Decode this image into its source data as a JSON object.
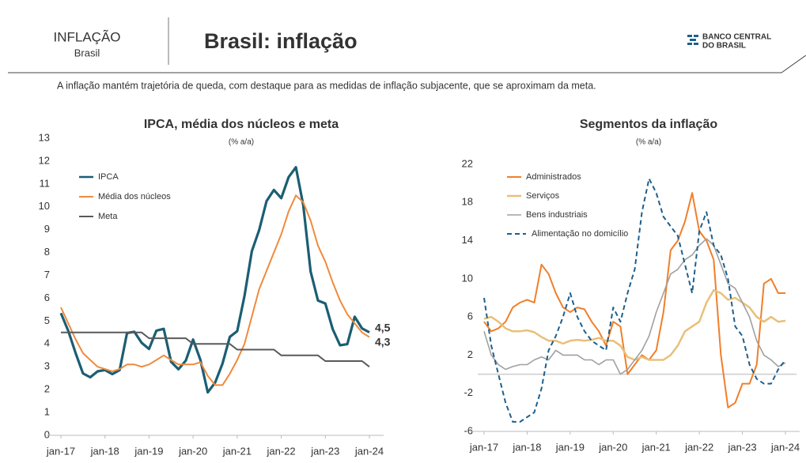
{
  "header": {
    "section": "INFLAÇÃO",
    "section_sub": "Brasil",
    "title": "Brasil: inflação",
    "logo": [
      "BANCO CENTRAL",
      "DO BRASIL"
    ],
    "subtitle": "A inflação mantém trajetória de queda, com destaque para as medidas de inflação subjacente, que se aproximam da meta."
  },
  "chart_data": [
    {
      "type": "line",
      "title": "IPCA, média dos núcleos e meta",
      "subtitle": "(% a/a)",
      "categories": [
        "jan-17",
        null,
        null,
        null,
        null,
        null,
        "jan-18",
        null,
        null,
        null,
        null,
        null,
        "jan-19",
        null,
        null,
        null,
        null,
        null,
        "jan-20",
        null,
        null,
        null,
        null,
        null,
        "jan-21",
        null,
        null,
        null,
        null,
        null,
        "jan-22",
        null,
        null,
        null,
        null,
        null,
        "jan-23",
        null,
        null,
        null,
        null,
        null,
        "jan-24"
      ],
      "ylim": [
        0,
        13
      ],
      "yticks": [
        0,
        1,
        2,
        3,
        4,
        5,
        6,
        7,
        8,
        9,
        10,
        11,
        12,
        13
      ],
      "zero_line": false,
      "series": [
        {
          "name": "IPCA",
          "color": "#1b5e73",
          "width": 3.2,
          "dash": false,
          "end_label": "4,5",
          "values": [
            5.35,
            4.57,
            3.6,
            2.71,
            2.54,
            2.8,
            2.86,
            2.68,
            2.86,
            4.48,
            4.53,
            4.05,
            3.78,
            4.58,
            4.66,
            3.22,
            2.89,
            3.27,
            4.19,
            3.3,
            1.88,
            2.31,
            3.14,
            4.31,
            4.56,
            6.1,
            8.06,
            8.99,
            10.25,
            10.74,
            10.38,
            11.3,
            11.73,
            10.07,
            7.17,
            5.9,
            5.77,
            4.65,
            3.94,
            3.99,
            5.19,
            4.68,
            4.51
          ]
        },
        {
          "name": "Média dos núcleos",
          "color": "#f08a3c",
          "width": 2,
          "dash": false,
          "end_label": "4,3",
          "values": [
            5.6,
            4.9,
            4.2,
            3.6,
            3.3,
            3.0,
            2.9,
            2.8,
            2.9,
            3.1,
            3.1,
            3.0,
            3.1,
            3.3,
            3.5,
            3.3,
            3.1,
            3.1,
            3.1,
            3.2,
            2.6,
            2.2,
            2.2,
            2.7,
            3.3,
            4.0,
            5.2,
            6.4,
            7.2,
            8.0,
            8.8,
            9.8,
            10.5,
            10.2,
            9.4,
            8.3,
            7.6,
            6.7,
            5.9,
            5.3,
            4.9,
            4.5,
            4.3
          ]
        },
        {
          "name": "Meta",
          "color": "#595959",
          "width": 2,
          "dash": false,
          "values": [
            4.5,
            4.5,
            4.5,
            4.5,
            4.5,
            4.5,
            4.5,
            4.5,
            4.5,
            4.5,
            4.5,
            4.5,
            4.25,
            4.25,
            4.25,
            4.25,
            4.25,
            4.25,
            4.0,
            4.0,
            4.0,
            4.0,
            4.0,
            4.0,
            3.75,
            3.75,
            3.75,
            3.75,
            3.75,
            3.75,
            3.5,
            3.5,
            3.5,
            3.5,
            3.5,
            3.5,
            3.25,
            3.25,
            3.25,
            3.25,
            3.25,
            3.25,
            3.0
          ]
        }
      ]
    },
    {
      "type": "line",
      "title": "Segmentos da inflação",
      "subtitle": "(% a/a)",
      "categories": [
        "jan-17",
        null,
        null,
        null,
        null,
        null,
        "jan-18",
        null,
        null,
        null,
        null,
        null,
        "jan-19",
        null,
        null,
        null,
        null,
        null,
        "jan-20",
        null,
        null,
        null,
        null,
        null,
        "jan-21",
        null,
        null,
        null,
        null,
        null,
        "jan-22",
        null,
        null,
        null,
        null,
        null,
        "jan-23",
        null,
        null,
        null,
        null,
        null,
        "jan-24"
      ],
      "ylim": [
        -6,
        22
      ],
      "yticks": [
        -6,
        -2,
        2,
        6,
        10,
        14,
        18,
        22
      ],
      "zero_line": true,
      "series": [
        {
          "name": "Administrados",
          "color": "#f07f2a",
          "width": 2,
          "dash": false,
          "values": [
            5.5,
            4.5,
            4.8,
            5.5,
            7.0,
            7.5,
            7.8,
            7.5,
            11.5,
            10.5,
            8.5,
            7.0,
            6.5,
            7.0,
            6.8,
            5.5,
            4.5,
            3.0,
            5.5,
            5.0,
            0.0,
            1.0,
            2.0,
            1.5,
            2.5,
            6.5,
            13.0,
            14.0,
            16.0,
            19.0,
            15.0,
            14.0,
            12.0,
            2.0,
            -3.5,
            -3.0,
            -1.0,
            -1.0,
            1.0,
            9.5,
            10.0,
            8.5,
            8.5
          ]
        },
        {
          "name": "Serviços",
          "color": "#e8c07a",
          "width": 2.5,
          "dash": false,
          "values": [
            5.8,
            6.0,
            5.5,
            4.8,
            4.5,
            4.5,
            4.6,
            4.4,
            3.9,
            3.5,
            3.5,
            3.2,
            3.5,
            3.6,
            3.5,
            3.6,
            3.8,
            3.5,
            3.5,
            3.0,
            1.8,
            1.5,
            1.8,
            1.5,
            1.5,
            1.5,
            2.0,
            3.0,
            4.5,
            5.0,
            5.5,
            7.5,
            8.8,
            8.5,
            7.8,
            8.0,
            7.5,
            7.0,
            6.0,
            5.5,
            6.0,
            5.5,
            5.6
          ]
        },
        {
          "name": "Bens industriais",
          "color": "#a0a0a0",
          "width": 1.6,
          "dash": false,
          "values": [
            4.5,
            2.0,
            1.0,
            0.5,
            0.8,
            1.0,
            1.0,
            1.5,
            1.8,
            1.5,
            2.5,
            2.0,
            2.0,
            2.0,
            1.5,
            1.5,
            1.0,
            1.5,
            1.5,
            0.0,
            0.5,
            1.5,
            2.5,
            4.0,
            6.5,
            8.5,
            10.5,
            11.0,
            12.0,
            12.5,
            13.5,
            14.2,
            13.5,
            11.5,
            9.5,
            9.0,
            7.5,
            6.0,
            3.5,
            2.0,
            1.5,
            0.8,
            1.2
          ]
        },
        {
          "name": "Alimentação no domicílio",
          "color": "#1f5f8b",
          "width": 2,
          "dash": true,
          "values": [
            8.0,
            3.0,
            0.0,
            -3.0,
            -5.0,
            -5.0,
            -4.5,
            -4.0,
            -1.5,
            2.5,
            4.0,
            6.0,
            8.5,
            6.0,
            4.5,
            3.5,
            3.0,
            2.5,
            7.0,
            5.5,
            8.5,
            11.0,
            17.0,
            20.5,
            19.0,
            16.5,
            15.5,
            14.5,
            11.5,
            8.5,
            15.0,
            17.0,
            13.5,
            12.5,
            10.0,
            5.0,
            4.0,
            1.0,
            -0.5,
            -1.0,
            -1.0,
            0.5,
            1.5
          ]
        }
      ]
    }
  ]
}
